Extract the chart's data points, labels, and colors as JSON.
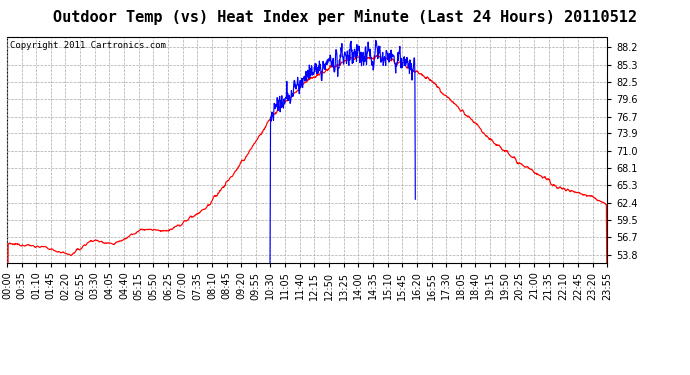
{
  "title": "Outdoor Temp (vs) Heat Index per Minute (Last 24 Hours) 20110512",
  "copyright": "Copyright 2011 Cartronics.com",
  "yticks": [
    53.8,
    56.7,
    59.5,
    62.4,
    65.3,
    68.1,
    71.0,
    73.9,
    76.7,
    79.6,
    82.5,
    85.3,
    88.2
  ],
  "ylim": [
    52.5,
    89.8
  ],
  "xtick_labels": [
    "00:00",
    "00:35",
    "01:10",
    "01:45",
    "02:20",
    "02:55",
    "03:30",
    "04:05",
    "04:40",
    "05:15",
    "05:50",
    "06:25",
    "07:00",
    "07:35",
    "08:10",
    "08:45",
    "09:20",
    "09:55",
    "10:30",
    "11:05",
    "11:40",
    "12:15",
    "12:50",
    "13:25",
    "14:00",
    "14:35",
    "15:10",
    "15:45",
    "16:20",
    "16:55",
    "17:30",
    "18:05",
    "18:40",
    "19:15",
    "19:50",
    "20:25",
    "21:00",
    "21:35",
    "22:10",
    "22:45",
    "23:20",
    "23:55"
  ],
  "background_color": "#ffffff",
  "plot_bg_color": "#ffffff",
  "grid_color": "#aaaaaa",
  "line_color_red": "#ff0000",
  "line_color_blue": "#0000ff",
  "title_fontsize": 11,
  "copyright_fontsize": 6.5,
  "tick_fontsize": 7
}
